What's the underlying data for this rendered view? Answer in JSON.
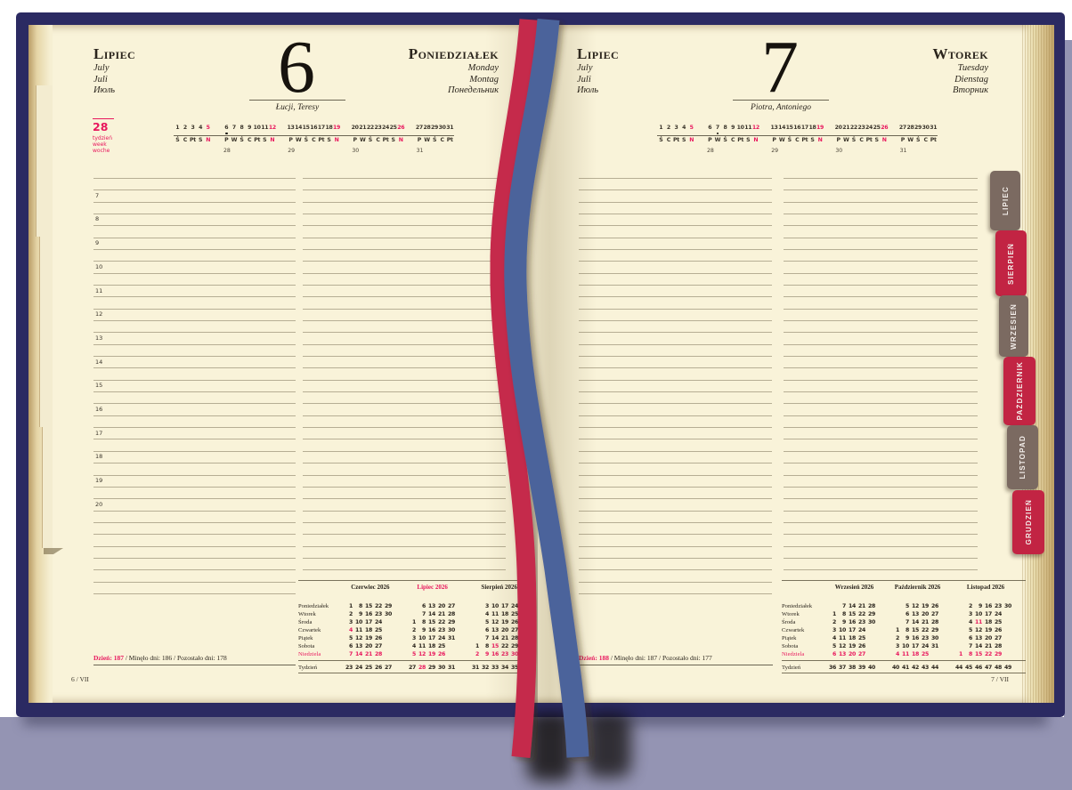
{
  "colors": {
    "cover": "#2b2a62",
    "page": "#f9f3d9",
    "ruled_line": "#b6ae94",
    "accent_red": "#e8175d",
    "tab_red": "#c22443",
    "tab_taupe": "#7b6a61",
    "ribbon_red": "#c5294b",
    "ribbon_blue": "#4c649b",
    "desk_surface": "#9494b3"
  },
  "month": {
    "pl": "Lipiec",
    "en": "July",
    "de": "Juli",
    "ru": "Июль"
  },
  "calendar_strip": {
    "groups": [
      {
        "days": [
          "1",
          "2",
          "3",
          "4",
          "5"
        ],
        "red_days": [
          4
        ],
        "letters": [
          "Ś",
          "C",
          "Pt",
          "S",
          "N"
        ],
        "red_letters": [
          4
        ],
        "week": ""
      },
      {
        "days": [
          "6",
          "7",
          "8",
          "9",
          "10",
          "11",
          "12"
        ],
        "red_days": [
          6
        ],
        "letters": [
          "P",
          "W",
          "Ś",
          "C",
          "Pt",
          "S",
          "N"
        ],
        "red_letters": [
          6
        ],
        "week": "28"
      },
      {
        "days": [
          "13",
          "14",
          "15",
          "16",
          "17",
          "18",
          "19"
        ],
        "red_days": [
          6
        ],
        "letters": [
          "P",
          "W",
          "Ś",
          "C",
          "Pt",
          "S",
          "N"
        ],
        "red_letters": [
          6
        ],
        "week": "29"
      },
      {
        "days": [
          "20",
          "21",
          "22",
          "23",
          "24",
          "25",
          "26"
        ],
        "red_days": [
          6
        ],
        "letters": [
          "P",
          "W",
          "Ś",
          "C",
          "Pt",
          "S",
          "N"
        ],
        "red_letters": [
          6
        ],
        "week": "30"
      },
      {
        "days": [
          "27",
          "28",
          "29",
          "30",
          "31"
        ],
        "red_days": [],
        "letters": [
          "P",
          "W",
          "Ś",
          "C",
          "Pt"
        ],
        "red_letters": [],
        "week": "31"
      }
    ]
  },
  "mini_calendar_labels": {
    "day_labels": [
      "Poniedziałek",
      "Wtorek",
      "Środa",
      "Czwartek",
      "Piątek",
      "Sobota",
      "Niedziela"
    ],
    "week_label": "Tydzień"
  },
  "left_page": {
    "weekday": {
      "pl": "Poniedziałek",
      "en": "Monday",
      "de": "Montag",
      "ru": "Понедельник"
    },
    "day_number": "6",
    "name_day": "Łucji, Teresy",
    "week_badge": {
      "number": "28",
      "labels": [
        "tydzień",
        "week",
        "woche"
      ]
    },
    "strip_dot": {
      "group": 1,
      "cell": 0
    },
    "hours": [
      "7",
      "8",
      "9",
      "10",
      "11",
      "12",
      "13",
      "14",
      "15",
      "16",
      "17",
      "18",
      "19",
      "20"
    ],
    "stats": {
      "day_label": "Dzień:",
      "day": "187",
      "passed_label": "Minęło dni:",
      "passed": "186",
      "remaining_label": "Pozostało dni:",
      "remaining": "178"
    },
    "footer": "6 / VII",
    "mini_calendar": {
      "months": [
        {
          "title": "Czerwiec 2026",
          "title_red": false,
          "rows": [
            [
              "1",
              "8",
              "15",
              "22",
              "29"
            ],
            [
              "2",
              "9",
              "16",
              "23",
              "30"
            ],
            [
              "3",
              "10",
              "17",
              "24",
              ""
            ],
            [
              "4",
              "11",
              "18",
              "25",
              ""
            ],
            [
              "5",
              "12",
              "19",
              "26",
              ""
            ],
            [
              "6",
              "13",
              "20",
              "27",
              ""
            ],
            [
              "7",
              "14",
              "21",
              "28",
              ""
            ]
          ],
          "red_cells": [
            [
              3,
              0
            ]
          ],
          "week_row": [
            "23",
            "24",
            "25",
            "26",
            "27"
          ],
          "red_week_cells": []
        },
        {
          "title": "Lipiec 2026",
          "title_red": true,
          "rows": [
            [
              "",
              "6",
              "13",
              "20",
              "27"
            ],
            [
              "",
              "7",
              "14",
              "21",
              "28"
            ],
            [
              "1",
              "8",
              "15",
              "22",
              "29"
            ],
            [
              "2",
              "9",
              "16",
              "23",
              "30"
            ],
            [
              "3",
              "10",
              "17",
              "24",
              "31"
            ],
            [
              "4",
              "11",
              "18",
              "25",
              ""
            ],
            [
              "5",
              "12",
              "19",
              "26",
              ""
            ]
          ],
          "red_cells": [],
          "week_row": [
            "27",
            "28",
            "29",
            "30",
            "31"
          ],
          "red_week_cells": [
            1
          ]
        },
        {
          "title": "Sierpień 2026",
          "title_red": false,
          "rows": [
            [
              "",
              "3",
              "10",
              "17",
              "24",
              "31"
            ],
            [
              "",
              "4",
              "11",
              "18",
              "25",
              ""
            ],
            [
              "",
              "5",
              "12",
              "19",
              "26",
              ""
            ],
            [
              "",
              "6",
              "13",
              "20",
              "27",
              ""
            ],
            [
              "",
              "7",
              "14",
              "21",
              "28",
              ""
            ],
            [
              "1",
              "8",
              "15",
              "22",
              "29",
              ""
            ],
            [
              "2",
              "9",
              "16",
              "23",
              "30",
              ""
            ]
          ],
          "red_cells": [
            [
              5,
              2
            ]
          ],
          "week_row": [
            "31",
            "32",
            "33",
            "34",
            "35",
            "36"
          ],
          "red_week_cells": []
        }
      ]
    }
  },
  "right_page": {
    "weekday": {
      "pl": "Wtorek",
      "en": "Tuesday",
      "de": "Dienstag",
      "ru": "Вторник"
    },
    "day_number": "7",
    "name_day": "Piotra, Antoniego",
    "strip_dot": {
      "group": 1,
      "cell": 1
    },
    "stats": {
      "day_label": "Dzień:",
      "day": "188",
      "passed_label": "Minęło dni:",
      "passed": "187",
      "remaining_label": "Pozostało dni:",
      "remaining": "177"
    },
    "footer": "7 / VII",
    "mini_calendar": {
      "months": [
        {
          "title": "Wrzesień 2026",
          "title_red": false,
          "rows": [
            [
              "",
              "7",
              "14",
              "21",
              "28"
            ],
            [
              "1",
              "8",
              "15",
              "22",
              "29"
            ],
            [
              "2",
              "9",
              "16",
              "23",
              "30"
            ],
            [
              "3",
              "10",
              "17",
              "24",
              ""
            ],
            [
              "4",
              "11",
              "18",
              "25",
              ""
            ],
            [
              "5",
              "12",
              "19",
              "26",
              ""
            ],
            [
              "6",
              "13",
              "20",
              "27",
              ""
            ]
          ],
          "red_cells": [],
          "week_row": [
            "36",
            "37",
            "38",
            "39",
            "40"
          ],
          "red_week_cells": []
        },
        {
          "title": "Październik 2026",
          "title_red": false,
          "rows": [
            [
              "",
              "5",
              "12",
              "19",
              "26"
            ],
            [
              "",
              "6",
              "13",
              "20",
              "27"
            ],
            [
              "",
              "7",
              "14",
              "21",
              "28"
            ],
            [
              "1",
              "8",
              "15",
              "22",
              "29"
            ],
            [
              "2",
              "9",
              "16",
              "23",
              "30"
            ],
            [
              "3",
              "10",
              "17",
              "24",
              "31"
            ],
            [
              "4",
              "11",
              "18",
              "25",
              ""
            ]
          ],
          "red_cells": [],
          "week_row": [
            "40",
            "41",
            "42",
            "43",
            "44"
          ],
          "red_week_cells": []
        },
        {
          "title": "Listopad 2026",
          "title_red": false,
          "rows": [
            [
              "",
              "2",
              "9",
              "16",
              "23",
              "30"
            ],
            [
              "",
              "3",
              "10",
              "17",
              "24",
              ""
            ],
            [
              "",
              "4",
              "11",
              "18",
              "25",
              ""
            ],
            [
              "",
              "5",
              "12",
              "19",
              "26",
              ""
            ],
            [
              "",
              "6",
              "13",
              "20",
              "27",
              ""
            ],
            [
              "",
              "7",
              "14",
              "21",
              "28",
              ""
            ],
            [
              "1",
              "8",
              "15",
              "22",
              "29",
              ""
            ]
          ],
          "red_cells": [
            [
              2,
              2
            ]
          ],
          "week_row": [
            "44",
            "45",
            "46",
            "47",
            "48",
            "49"
          ],
          "red_week_cells": []
        }
      ]
    }
  },
  "tabs": [
    {
      "label": "LIPIEC",
      "color": "#7b6a61"
    },
    {
      "label": "SIERPIEŃ",
      "color": "#c22443"
    },
    {
      "label": "WRZESIEŃ",
      "color": "#7b6a61"
    },
    {
      "label": "PAŹDZIERNIK",
      "color": "#c22443"
    },
    {
      "label": "LISTOPAD",
      "color": "#7b6a61"
    },
    {
      "label": "GRUDZIEŃ",
      "color": "#c22443"
    }
  ],
  "ribbons": {
    "red": "#c5294b",
    "blue": "#4c649b"
  }
}
